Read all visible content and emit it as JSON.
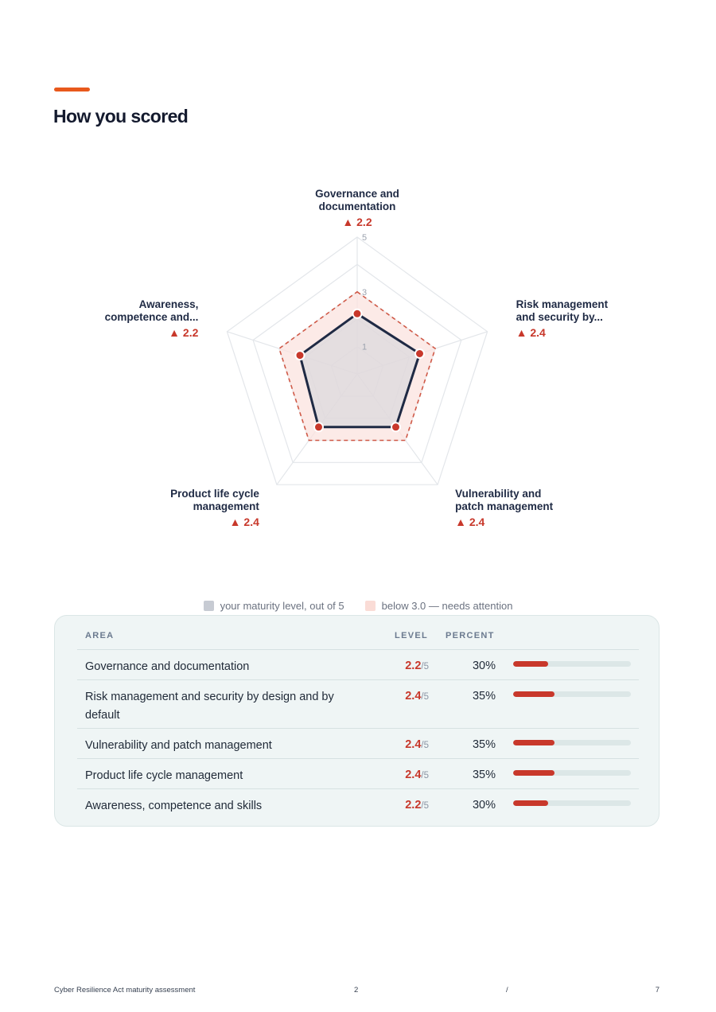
{
  "page": {
    "title": "How you scored",
    "accent_color": "#e8591c"
  },
  "chart_data": {
    "type": "radar",
    "scale_max": 5,
    "ticks": [
      1,
      3,
      5
    ],
    "threshold": 3.0,
    "axes": [
      {
        "label_lines": [
          "Governance and",
          "documentation"
        ],
        "value": 2.2,
        "score_text": "▲ 2.2"
      },
      {
        "label_lines": [
          "Risk management",
          "and security by..."
        ],
        "value": 2.4,
        "score_text": "▲ 2.4"
      },
      {
        "label_lines": [
          "Vulnerability and",
          "patch management"
        ],
        "value": 2.4,
        "score_text": "▲ 2.4"
      },
      {
        "label_lines": [
          "Product life cycle",
          "management"
        ],
        "value": 2.4,
        "score_text": "▲ 2.4"
      },
      {
        "label_lines": [
          "Awareness,",
          "competence and..."
        ],
        "value": 2.2,
        "score_text": "▲ 2.2"
      }
    ],
    "colors": {
      "grid": "#e3e6ea",
      "series_fill": "#cfd3da",
      "series_stroke": "#1f2a44",
      "threshold_fill": "#fbe3df",
      "threshold_stroke": "#d05a48",
      "point": "#c8382b",
      "score_text": "#c8382b"
    }
  },
  "legend": {
    "series_label": "your maturity level, out of 5",
    "threshold_label": "below 3.0 — needs attention",
    "series_swatch": "#c7cbd3",
    "threshold_swatch": "#fadcd6"
  },
  "table": {
    "headers": {
      "area": "AREA",
      "level": "LEVEL",
      "percent": "PERCENT"
    },
    "level_suffix": "/5",
    "level_color": "#c8382b",
    "bar_color": "#c8382b",
    "rows": [
      {
        "area": "Governance and documentation",
        "level": "2.2",
        "percent_text": "30%",
        "percent": 30
      },
      {
        "area": "Risk management and security by design and by default",
        "level": "2.4",
        "percent_text": "35%",
        "percent": 35
      },
      {
        "area": "Vulnerability and patch management",
        "level": "2.4",
        "percent_text": "35%",
        "percent": 35
      },
      {
        "area": "Product life cycle management",
        "level": "2.4",
        "percent_text": "35%",
        "percent": 35
      },
      {
        "area": "Awareness, competence and skills",
        "level": "2.2",
        "percent_text": "30%",
        "percent": 30
      }
    ]
  },
  "footer": {
    "doc_title": "Cyber Resilience Act maturity assessment",
    "page_number": "2",
    "separator": "/",
    "total_pages": "7"
  }
}
